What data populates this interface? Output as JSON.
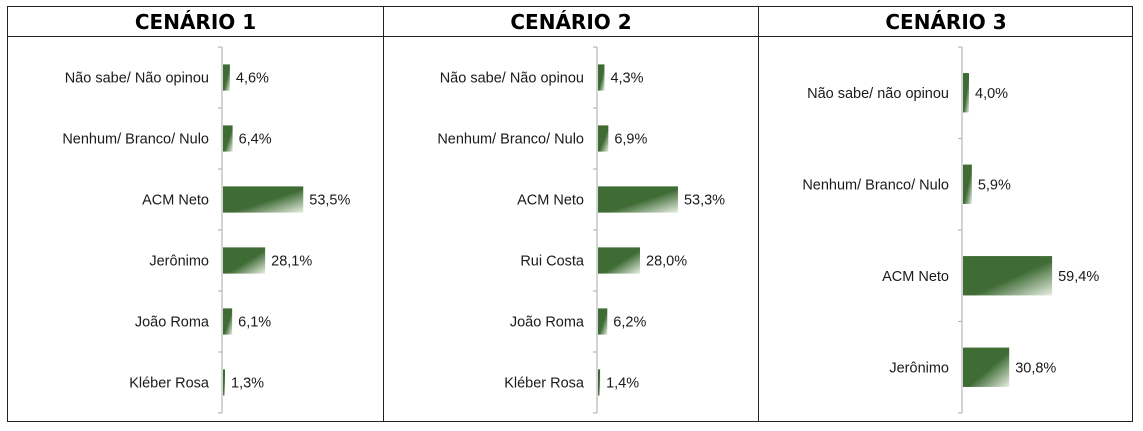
{
  "colors": {
    "bar_dark": "#3f6b35",
    "bar_light": "#e8efe3",
    "axis": "#b8b8b8",
    "border": "#222222"
  },
  "chart_data": [
    {
      "type": "bar",
      "orientation": "horizontal",
      "title": "CENÁRIO 1",
      "categories": [
        "Não sabe/ Não opinou",
        "Nenhum/ Branco/ Nulo",
        "ACM Neto",
        "Jerônimo",
        "João Roma",
        "Kléber Rosa"
      ],
      "values": [
        4.6,
        6.4,
        53.5,
        28.1,
        6.1,
        1.3
      ],
      "labels": [
        "4,6%",
        "6,4%",
        "53,5%",
        "28,1%",
        "6,1%",
        "1,3%"
      ]
    },
    {
      "type": "bar",
      "orientation": "horizontal",
      "title": "CENÁRIO 2",
      "categories": [
        "Não sabe/ Não opinou",
        "Nenhum/ Branco/ Nulo",
        "ACM Neto",
        "Rui Costa",
        "João Roma",
        "Kléber Rosa"
      ],
      "values": [
        4.3,
        6.9,
        53.3,
        28.0,
        6.2,
        1.4
      ],
      "labels": [
        "4,3%",
        "6,9%",
        "53,3%",
        "28,0%",
        "6,2%",
        "1,4%"
      ]
    },
    {
      "type": "bar",
      "orientation": "horizontal",
      "title": "CENÁRIO 3",
      "categories": [
        "Não sabe/ não opinou",
        "Nenhum/ Branco/ Nulo",
        "ACM Neto",
        "Jerônimo"
      ],
      "values": [
        4.0,
        5.9,
        59.4,
        30.8
      ],
      "labels": [
        "4,0%",
        "5,9%",
        "59,4%",
        "30,8%"
      ]
    }
  ]
}
